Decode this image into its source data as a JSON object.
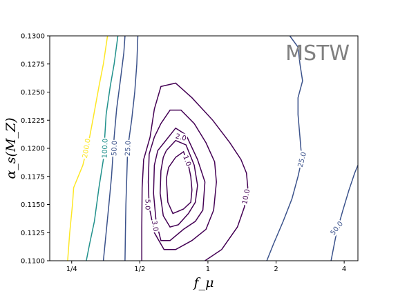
{
  "chart_data": {
    "type": "contour",
    "title": "",
    "annotation": "MSTW",
    "xlabel": "f_μ",
    "ylabel": "α_s(M_Z)",
    "xscale": "log2",
    "xlim": [
      0.2,
      4.6
    ],
    "ylim": [
      0.11,
      0.13
    ],
    "x_ticks": [
      {
        "value": 0.25,
        "label": "1/4"
      },
      {
        "value": 0.5,
        "label": "1/2"
      },
      {
        "value": 1,
        "label": "1"
      },
      {
        "value": 2,
        "label": "2"
      },
      {
        "value": 4,
        "label": "4"
      }
    ],
    "y_ticks": [
      {
        "value": 0.11,
        "label": "0.1100"
      },
      {
        "value": 0.1125,
        "label": "0.1125"
      },
      {
        "value": 0.115,
        "label": "0.1150"
      },
      {
        "value": 0.1175,
        "label": "0.1175"
      },
      {
        "value": 0.12,
        "label": "0.1200"
      },
      {
        "value": 0.1225,
        "label": "0.1225"
      },
      {
        "value": 0.125,
        "label": "0.1250"
      },
      {
        "value": 0.1275,
        "label": "0.1275"
      },
      {
        "value": 0.13,
        "label": "0.1300"
      }
    ],
    "contours": [
      {
        "level": 200.0,
        "label": "200.0",
        "color": "#fde725",
        "label_pos": [
          0.29,
          0.12
        ],
        "label_rotation": -80,
        "points": [
          [
            0.24,
            0.11
          ],
          [
            0.245,
            0.1125
          ],
          [
            0.252,
            0.115
          ],
          [
            0.255,
            0.1165
          ],
          [
            0.28,
            0.1185
          ],
          [
            0.3,
            0.121
          ],
          [
            0.31,
            0.1225
          ],
          [
            0.33,
            0.1255
          ],
          [
            0.345,
            0.1275
          ],
          [
            0.36,
            0.13
          ]
        ]
      },
      {
        "level": 100.0,
        "label": "100.0",
        "color": "#21918c",
        "label_pos": [
          0.35,
          0.12
        ],
        "label_rotation": -88,
        "points": [
          [
            0.29,
            0.11
          ],
          [
            0.3,
            0.1115
          ],
          [
            0.315,
            0.1135
          ],
          [
            0.33,
            0.1165
          ],
          [
            0.345,
            0.119
          ],
          [
            0.35,
            0.121
          ],
          [
            0.355,
            0.123
          ],
          [
            0.37,
            0.1255
          ],
          [
            0.385,
            0.1275
          ],
          [
            0.4,
            0.13
          ]
        ]
      },
      {
        "level": 50.0,
        "label": "50.0",
        "color": "#3b528b",
        "label_pos": [
          0.385,
          0.12
        ],
        "label_rotation": -88,
        "points": [
          [
            0.345,
            0.11
          ],
          [
            0.355,
            0.1125
          ],
          [
            0.365,
            0.115
          ],
          [
            0.375,
            0.1175
          ],
          [
            0.385,
            0.121
          ],
          [
            0.395,
            0.1235
          ],
          [
            0.41,
            0.126
          ],
          [
            0.425,
            0.1285
          ],
          [
            0.43,
            0.13
          ]
        ]
      },
      {
        "level": 25.0,
        "label": "25.0",
        "color": "#3b528b",
        "label_pos": [
          0.442,
          0.12
        ],
        "label_rotation": -88,
        "points": [
          [
            0.43,
            0.11
          ],
          [
            0.432,
            0.1125
          ],
          [
            0.434,
            0.115
          ],
          [
            0.438,
            0.1175
          ],
          [
            0.442,
            0.12
          ],
          [
            0.46,
            0.1225
          ],
          [
            0.475,
            0.125
          ],
          [
            0.485,
            0.1275
          ],
          [
            0.49,
            0.13
          ]
        ]
      },
      {
        "level": 25.0,
        "label": "25.0",
        "color": "#3b528b",
        "label_pos": [
          2.6,
          0.119
        ],
        "label_rotation": -75,
        "points": [
          [
            1.82,
            0.11
          ],
          [
            1.95,
            0.1115
          ],
          [
            2.15,
            0.1135
          ],
          [
            2.35,
            0.1155
          ],
          [
            2.5,
            0.1175
          ],
          [
            2.6,
            0.119
          ],
          [
            2.55,
            0.121
          ],
          [
            2.5,
            0.123
          ],
          [
            2.5,
            0.1245
          ],
          [
            2.62,
            0.126
          ],
          [
            2.55,
            0.1275
          ],
          [
            2.5,
            0.129
          ],
          [
            2.3,
            0.13
          ]
        ]
      },
      {
        "level": 50.0,
        "label": "50.0",
        "color": "#3b528b",
        "label_pos": [
          3.7,
          0.1129
        ],
        "label_rotation": -52,
        "points": [
          [
            3.5,
            0.11
          ],
          [
            3.7,
            0.1125
          ],
          [
            3.95,
            0.1145
          ],
          [
            4.2,
            0.1163
          ],
          [
            4.45,
            0.1178
          ],
          [
            4.6,
            0.1185
          ]
        ]
      },
      {
        "level": 10.0,
        "label": "10.0",
        "color": "#440154",
        "label_pos": [
          1.47,
          0.1157
        ],
        "label_rotation": -78,
        "points": [
          [
            0.51,
            0.11
          ],
          [
            0.51,
            0.113
          ],
          [
            0.512,
            0.1165
          ],
          [
            0.52,
            0.119
          ],
          [
            0.555,
            0.121
          ],
          [
            0.58,
            0.1235
          ],
          [
            0.62,
            0.1255
          ],
          [
            0.72,
            0.1258
          ],
          [
            0.85,
            0.1245
          ],
          [
            1.05,
            0.1225
          ],
          [
            1.25,
            0.1205
          ],
          [
            1.4,
            0.119
          ],
          [
            1.48,
            0.1178
          ],
          [
            1.5,
            0.1165
          ],
          [
            1.45,
            0.1148
          ],
          [
            1.35,
            0.113
          ],
          [
            1.15,
            0.111
          ],
          [
            0.97,
            0.11
          ]
        ]
      },
      {
        "level": 5.0,
        "label": "5.0",
        "color": "#440154",
        "label_pos": [
          0.542,
          0.115
        ],
        "label_rotation": 90,
        "points": [
          [
            0.62,
            0.1222
          ],
          [
            0.68,
            0.1234
          ],
          [
            0.76,
            0.1234
          ],
          [
            0.87,
            0.1222
          ],
          [
            0.98,
            0.1205
          ],
          [
            1.07,
            0.1188
          ],
          [
            1.09,
            0.117
          ],
          [
            1.06,
            0.1145
          ],
          [
            0.98,
            0.1128
          ],
          [
            0.85,
            0.1118
          ],
          [
            0.72,
            0.111
          ],
          [
            0.64,
            0.111
          ],
          [
            0.58,
            0.1125
          ],
          [
            0.55,
            0.1148
          ],
          [
            0.545,
            0.117
          ],
          [
            0.55,
            0.1195
          ],
          [
            0.58,
            0.121
          ],
          [
            0.62,
            0.1222
          ]
        ]
      },
      {
        "level": 3.0,
        "label": "3.0",
        "color": "#440154",
        "label_pos": [
          0.585,
          0.1131
        ],
        "label_rotation": 80,
        "points": [
          [
            0.64,
            0.1205
          ],
          [
            0.72,
            0.1218
          ],
          [
            0.8,
            0.1212
          ],
          [
            0.9,
            0.119
          ],
          [
            0.97,
            0.117
          ],
          [
            0.95,
            0.1145
          ],
          [
            0.88,
            0.1135
          ],
          [
            0.78,
            0.1128
          ],
          [
            0.68,
            0.1118
          ],
          [
            0.62,
            0.1118
          ],
          [
            0.59,
            0.1135
          ],
          [
            0.575,
            0.116
          ],
          [
            0.58,
            0.1185
          ],
          [
            0.6,
            0.1198
          ],
          [
            0.64,
            0.1205
          ]
        ]
      },
      {
        "level": 2.0,
        "label": "2.0",
        "color": "#440154",
        "label_pos": [
          0.76,
          0.121
        ],
        "label_rotation": 14,
        "points": [
          [
            0.655,
            0.1198
          ],
          [
            0.72,
            0.1207
          ],
          [
            0.8,
            0.1203
          ],
          [
            0.87,
            0.1185
          ],
          [
            0.9,
            0.1167
          ],
          [
            0.88,
            0.1152
          ],
          [
            0.82,
            0.1142
          ],
          [
            0.74,
            0.1132
          ],
          [
            0.68,
            0.113
          ],
          [
            0.635,
            0.114
          ],
          [
            0.615,
            0.116
          ],
          [
            0.62,
            0.118
          ],
          [
            0.635,
            0.1192
          ],
          [
            0.655,
            0.1198
          ]
        ]
      },
      {
        "level": 1.0,
        "label": "1.0",
        "color": "#440154",
        "label_pos": [
          0.81,
          0.1189
        ],
        "label_rotation": 70,
        "points": [
          [
            0.655,
            0.1173
          ],
          [
            0.67,
            0.1183
          ],
          [
            0.72,
            0.1192
          ],
          [
            0.78,
            0.1197
          ],
          [
            0.82,
            0.1185
          ],
          [
            0.84,
            0.1175
          ],
          [
            0.85,
            0.1163
          ],
          [
            0.84,
            0.1152
          ],
          [
            0.78,
            0.1146
          ],
          [
            0.7,
            0.1142
          ],
          [
            0.665,
            0.1152
          ],
          [
            0.655,
            0.1173
          ]
        ]
      }
    ]
  }
}
